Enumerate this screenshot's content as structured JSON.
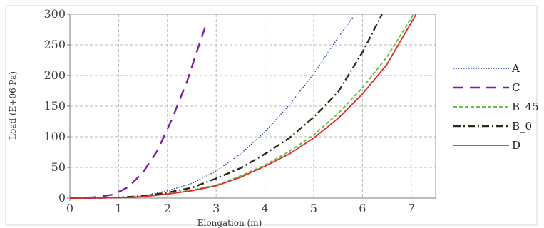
{
  "chart_data": {
    "type": "line",
    "xlabel": "Elongation (m)",
    "ylabel": "Load (E+06 Pa)",
    "xlim": [
      0,
      7.5
    ],
    "ylim": [
      0,
      300
    ],
    "xticks": [
      0,
      1,
      2,
      3,
      4,
      5,
      6,
      7
    ],
    "yticks": [
      0,
      50,
      100,
      150,
      200,
      250,
      300
    ],
    "grid": true,
    "legend_position": "right",
    "series": [
      {
        "name": "A",
        "color": "#2a4fa8",
        "style": "dotted",
        "x": [
          0,
          0.5,
          1,
          1.5,
          2,
          2.5,
          3,
          3.5,
          4,
          4.5,
          5,
          5.5,
          5.85
        ],
        "y": [
          0,
          0.2,
          1,
          4,
          12,
          24,
          44,
          72,
          108,
          152,
          203,
          262,
          300
        ]
      },
      {
        "name": "C",
        "color": "#7b1fa2",
        "style": "long-dash",
        "x": [
          0,
          0.3,
          0.6,
          0.9,
          1.2,
          1.5,
          1.8,
          2.1,
          2.4,
          2.6,
          2.8
        ],
        "y": [
          0,
          0.5,
          2,
          6,
          18,
          42,
          78,
          130,
          190,
          238,
          285
        ]
      },
      {
        "name": "B_45",
        "color": "#6abf4b",
        "style": "dashed",
        "x": [
          0,
          0.5,
          1,
          1.5,
          2,
          2.5,
          3,
          3.5,
          4,
          4.5,
          5,
          5.5,
          6,
          6.5,
          7.05
        ],
        "y": [
          0,
          0.1,
          0.7,
          2.5,
          7,
          13,
          21,
          36,
          54,
          76,
          103,
          138,
          180,
          230,
          300
        ]
      },
      {
        "name": "B_0",
        "color": "#2b2b15",
        "style": "dash-dot",
        "x": [
          0,
          0.5,
          1,
          1.5,
          2,
          2.5,
          3,
          3.5,
          4,
          4.5,
          5,
          5.5,
          6,
          6.4
        ],
        "y": [
          0,
          0.2,
          1,
          3.5,
          9,
          17,
          32,
          49,
          72,
          98,
          132,
          173,
          238,
          300
        ]
      },
      {
        "name": "D",
        "color": "#e32b2b",
        "style": "solid",
        "x": [
          0,
          0.5,
          1,
          1.5,
          2,
          2.5,
          3,
          3.5,
          4,
          4.5,
          5,
          5.5,
          6,
          6.5,
          7.1
        ],
        "y": [
          0,
          0.1,
          0.6,
          2.3,
          6.5,
          12,
          20,
          34,
          52,
          72,
          98,
          130,
          170,
          218,
          300
        ]
      }
    ]
  }
}
